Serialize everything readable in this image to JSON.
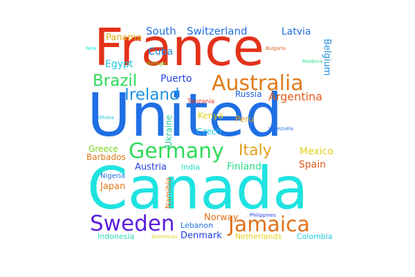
{
  "words": {
    "france": {
      "text": "France",
      "color": "#e2321a"
    },
    "united": {
      "text": "United",
      "color": "#1f6fe5"
    },
    "canada": {
      "text": "Canada",
      "color": "#1ee3e0"
    },
    "germany": {
      "text": "Germany",
      "color": "#2edb5a"
    },
    "australia": {
      "text": "Australia",
      "color": "#e07a1a"
    },
    "sweden": {
      "text": "Sweden",
      "color": "#5b1ee0"
    },
    "jamaica": {
      "text": "Jamaica",
      "color": "#e0701a"
    },
    "brazil": {
      "text": "Brazil",
      "color": "#2edb5a"
    },
    "ireland": {
      "text": "Ireland",
      "color": "#1f8fe0"
    },
    "italy": {
      "text": "Italy",
      "color": "#e0a01a"
    },
    "argentina": {
      "text": "Argentina",
      "color": "#e05a1a"
    },
    "south": {
      "text": "South",
      "color": "#1f6fe0"
    },
    "switzerland": {
      "text": "Switzerland",
      "color": "#1f6fe0"
    },
    "latvia": {
      "text": "Latvia",
      "color": "#1f6fe0"
    },
    "panama": {
      "text": "Panama",
      "color": "#e0b01a"
    },
    "cuba": {
      "text": "Cuba",
      "color": "#1f8fe0"
    },
    "egypt": {
      "text": "Egypt",
      "color": "#1ec8e0"
    },
    "puerto": {
      "text": "Puerto",
      "color": "#1f3fe0"
    },
    "russia": {
      "text": "Russia",
      "color": "#1f5fe0"
    },
    "belgium": {
      "text": "Belgium",
      "color": "#1f8fe0"
    },
    "kenya": {
      "text": "Kenya",
      "color": "#e0d01a"
    },
    "peru": {
      "text": "Peru",
      "color": "#e0a01a"
    },
    "czech": {
      "text": "Czech",
      "color": "#1ec8e0"
    },
    "ukraine": {
      "text": "Ukraine",
      "color": "#1ec8a0"
    },
    "mexico": {
      "text": "Mexico",
      "color": "#e0d01a"
    },
    "greece": {
      "text": "Greece",
      "color": "#7ad01a"
    },
    "barbados": {
      "text": "Barbados",
      "color": "#e07a1a"
    },
    "austria": {
      "text": "Austria",
      "color": "#1f3fe0"
    },
    "india": {
      "text": "India",
      "color": "#1ee3c0"
    },
    "finland": {
      "text": "Finland",
      "color": "#2edb8a"
    },
    "spain": {
      "text": "Spain",
      "color": "#e05a1a"
    },
    "japan": {
      "text": "Japan",
      "color": "#e07a1a"
    },
    "nigeria": {
      "text": "Nigeria",
      "color": "#1f6fe0"
    },
    "namibia": {
      "text": "Namibia",
      "color": "#e0701a"
    },
    "norway": {
      "text": "Norway",
      "color": "#e0701a"
    },
    "lebanon": {
      "text": "Lebanon",
      "color": "#1f6fe0"
    },
    "denmark": {
      "text": "Denmark",
      "color": "#1f3fe0"
    },
    "indonesia": {
      "text": "Indonesia",
      "color": "#2edbb0"
    },
    "netherlands": {
      "text": "Netherlands",
      "color": "#e0d01a"
    },
    "colombia": {
      "text": "Colombia",
      "color": "#1ec8e0"
    },
    "tanzania": {
      "text": "Tanzania",
      "color": "#e0321a"
    },
    "bulgaria": {
      "text": "Bulgaria",
      "color": "#e05a1a"
    },
    "moldova": {
      "text": "Moldova",
      "color": "#2edb8a"
    },
    "portugal": {
      "text": "Portugal",
      "color": "#7ad01a"
    },
    "new": {
      "text": "New",
      "color": "#1ee3e0"
    },
    "ghana": {
      "text": "Ghana",
      "color": "#1ec8e0"
    },
    "venezuela": {
      "text": "Venezuela",
      "color": "#1f6fe0"
    },
    "dominican": {
      "text": "Dominican",
      "color": "#e0d01a"
    },
    "philippines": {
      "text": "Philippines",
      "color": "#1f3fe0"
    }
  }
}
